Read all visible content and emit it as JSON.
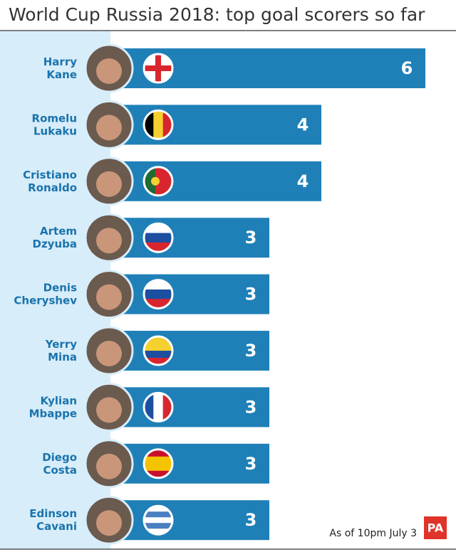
{
  "chart_data": {
    "type": "bar",
    "orientation": "horizontal",
    "title": "World Cup Russia 2018: top goal scorers so far",
    "categories": [
      "Harry Kane",
      "Romelu Lukaku",
      "Cristiano Ronaldo",
      "Artem Dzyuba",
      "Denis Cheryshev",
      "Yerry Mina",
      "Kylian Mbappe",
      "Diego Costa",
      "Edinson Cavani"
    ],
    "values": [
      6,
      4,
      4,
      3,
      3,
      3,
      3,
      3,
      3
    ],
    "color": "#1f80b8",
    "note": "As of 10pm July 3",
    "source": "PA"
  }
}
